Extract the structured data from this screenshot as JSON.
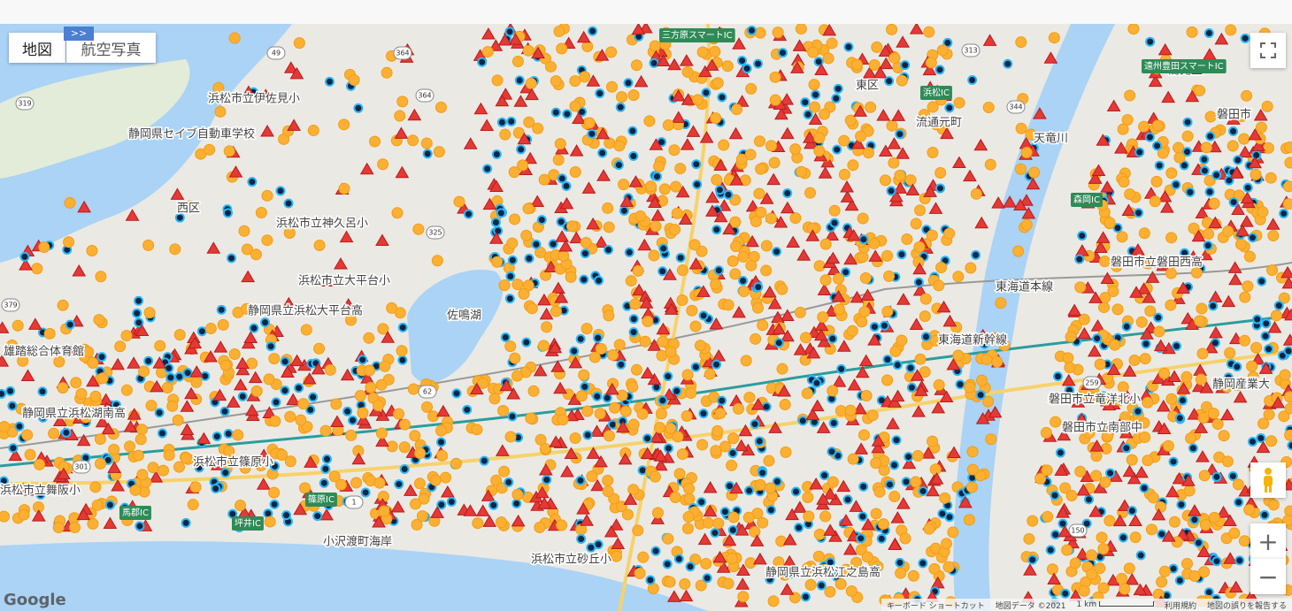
{
  "controls": {
    "map": "地図",
    "satellite": "航空写真",
    "toggle": ">>"
  },
  "places": [
    "浜松市立伊佐見小",
    "静岡県セイブ自動車学校",
    "西区",
    "浜松市立神久呂小",
    "浜松市立大平台小",
    "静岡県立浜松大平台高",
    "雄踏総合体育館",
    "静岡県立浜松湖南高",
    "浜松市立篠原小",
    "浜松市立舞阪小",
    "佐鳴湖",
    "東区",
    "流通元町",
    "東海道本線",
    "東海道新幹線",
    "天竜川",
    "磐田市",
    "高見丘",
    "磐田市立磐田西高",
    "磐田市立竜洋北小",
    "磐田市立南部中",
    "静岡産業大",
    "小沢渡町海岸",
    "浜松市立砂丘小",
    "静岡県立浜松江之島高"
  ],
  "interchanges": [
    "三方原スマートIC",
    "浜松IC",
    "篠原IC",
    "馬郡IC",
    "坪井IC",
    "森岡IC",
    "遠州豊田スマートIC"
  ],
  "routes": [
    "49",
    "319",
    "364",
    "364",
    "325",
    "379",
    "301",
    "1",
    "150",
    "259",
    "344",
    "313",
    "62"
  ],
  "footer": {
    "shortcuts": "キーボード ショートカット",
    "mapdata": "地図データ ©2021",
    "scale": "1 km",
    "terms": "利用規約",
    "report": "地図の誤りを報告する"
  },
  "logo": "Google"
}
